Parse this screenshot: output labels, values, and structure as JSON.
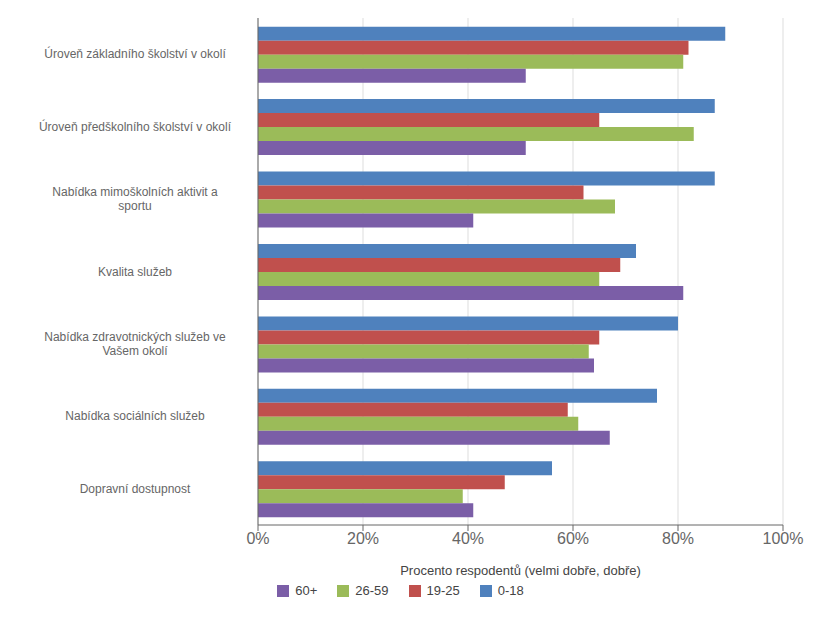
{
  "chart_data": {
    "type": "bar",
    "orientation": "horizontal",
    "categories": [
      "Dopravní dostupnost",
      "Nabídka sociálních služeb",
      "Nabídka zdravotnických služeb ve\nVašem okolí",
      "Kvalita služeb",
      "Nabídka mimoškolních aktivit a\nsportu",
      "Úroveň předškolního školství v okolí",
      "Úroveň základního školství v okolí"
    ],
    "series": [
      {
        "name": "0-18",
        "color": "#4F81BD",
        "values": [
          0.56,
          0.76,
          0.8,
          0.72,
          0.87,
          0.87,
          0.89
        ]
      },
      {
        "name": "19-25",
        "color": "#C0504D",
        "values": [
          0.47,
          0.59,
          0.65,
          0.69,
          0.62,
          0.65,
          0.82
        ]
      },
      {
        "name": "26-59",
        "color": "#9BBB59",
        "values": [
          0.39,
          0.61,
          0.63,
          0.65,
          0.68,
          0.83,
          0.81
        ]
      },
      {
        "name": "60+",
        "color": "#7B5EA7",
        "values": [
          0.41,
          0.67,
          0.64,
          0.81,
          0.41,
          0.51,
          0.51
        ]
      }
    ],
    "xlabel": "Procento respodentů (velmi dobře, dobře)",
    "xlim": [
      0,
      1.0
    ],
    "xticks": [
      {
        "value": 0,
        "label": "0%"
      },
      {
        "value": 0.2,
        "label": "20%"
      },
      {
        "value": 0.4,
        "label": "40%"
      },
      {
        "value": 0.6,
        "label": "60%"
      },
      {
        "value": 0.8,
        "label": "80%"
      },
      {
        "value": 1.0,
        "label": "100%"
      }
    ],
    "grid": true,
    "legend": "bottom"
  }
}
